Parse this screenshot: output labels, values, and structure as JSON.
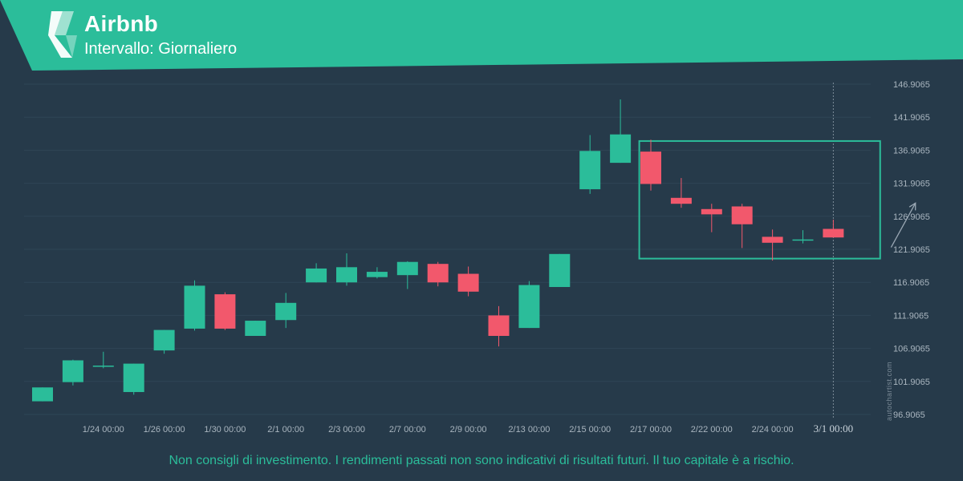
{
  "header": {
    "title": "Airbnb",
    "subtitle": "Intervallo: Giornaliero"
  },
  "colors": {
    "background": "#263a4a",
    "banner": "#2bbd9a",
    "bull": "#2bbd9a",
    "bear": "#f2586c",
    "pattern_box": "#2bbd9a",
    "arrow": "#9aa8b4"
  },
  "icons": {
    "logo": "autochartist-logo-icon"
  },
  "chart_data": {
    "type": "candlestick",
    "ylim": [
      96.9065,
      146.9065
    ],
    "y_ticks": [
      "146.9065",
      "141.9065",
      "136.9065",
      "131.9065",
      "126.9065",
      "121.9065",
      "116.9065",
      "111.9065",
      "106.9065",
      "101.9065",
      "96.9065"
    ],
    "x_tick_labels": [
      {
        "label": "1/24 00:00",
        "index": 2
      },
      {
        "label": "1/26 00:00",
        "index": 4
      },
      {
        "label": "1/30 00:00",
        "index": 6
      },
      {
        "label": "2/1 00:00",
        "index": 8
      },
      {
        "label": "2/3 00:00",
        "index": 10
      },
      {
        "label": "2/7 00:00",
        "index": 12
      },
      {
        "label": "2/9 00:00",
        "index": 14
      },
      {
        "label": "2/13 00:00",
        "index": 16
      },
      {
        "label": "2/15 00:00",
        "index": 18
      },
      {
        "label": "2/17 00:00",
        "index": 20
      },
      {
        "label": "2/22 00:00",
        "index": 22
      },
      {
        "label": "2/24 00:00",
        "index": 24
      },
      {
        "label": "3/1 00:00",
        "index": 26
      }
    ],
    "candles": [
      {
        "o": 98.9,
        "h": 101.0,
        "l": 98.9,
        "c": 101.0
      },
      {
        "o": 101.8,
        "h": 105.2,
        "l": 101.3,
        "c": 105.1
      },
      {
        "o": 104.3,
        "h": 106.4,
        "l": 103.9,
        "c": 104.3
      },
      {
        "o": 100.3,
        "h": 104.6,
        "l": 99.9,
        "c": 104.6
      },
      {
        "o": 106.6,
        "h": 109.7,
        "l": 106.1,
        "c": 109.7
      },
      {
        "o": 109.9,
        "h": 117.2,
        "l": 109.6,
        "c": 116.4
      },
      {
        "o": 115.1,
        "h": 115.4,
        "l": 109.7,
        "c": 109.9
      },
      {
        "o": 108.8,
        "h": 111.1,
        "l": 108.8,
        "c": 111.1
      },
      {
        "o": 111.2,
        "h": 115.3,
        "l": 110.0,
        "c": 113.8
      },
      {
        "o": 116.9,
        "h": 119.8,
        "l": 116.9,
        "c": 119.0
      },
      {
        "o": 116.9,
        "h": 121.3,
        "l": 116.4,
        "c": 119.2
      },
      {
        "o": 117.7,
        "h": 119.2,
        "l": 117.5,
        "c": 118.5
      },
      {
        "o": 118.0,
        "h": 120.1,
        "l": 115.9,
        "c": 120.0
      },
      {
        "o": 119.7,
        "h": 120.0,
        "l": 116.3,
        "c": 116.9
      },
      {
        "o": 118.2,
        "h": 119.3,
        "l": 114.8,
        "c": 115.5
      },
      {
        "o": 111.9,
        "h": 113.3,
        "l": 107.2,
        "c": 108.8
      },
      {
        "o": 110.0,
        "h": 117.1,
        "l": 110.0,
        "c": 116.5
      },
      {
        "o": 116.2,
        "h": 121.2,
        "l": 116.2,
        "c": 121.2
      },
      {
        "o": 131.0,
        "h": 139.2,
        "l": 130.3,
        "c": 136.8
      },
      {
        "o": 135.0,
        "h": 144.6,
        "l": 135.0,
        "c": 139.3
      },
      {
        "o": 136.7,
        "h": 138.5,
        "l": 130.8,
        "c": 131.8
      },
      {
        "o": 129.7,
        "h": 132.7,
        "l": 128.2,
        "c": 128.8
      },
      {
        "o": 128.0,
        "h": 128.8,
        "l": 124.5,
        "c": 127.2
      },
      {
        "o": 128.4,
        "h": 128.8,
        "l": 122.1,
        "c": 125.7
      },
      {
        "o": 123.8,
        "h": 124.9,
        "l": 120.2,
        "c": 122.9
      },
      {
        "o": 123.4,
        "h": 124.8,
        "l": 122.8,
        "c": 123.4
      },
      {
        "o": 125.0,
        "h": 126.4,
        "l": 123.7,
        "c": 123.7
      }
    ],
    "pattern_box": {
      "from_index": 19.62,
      "to_index": 27.54,
      "top": 138.3,
      "bottom": 120.5
    },
    "forecast_arrow": {
      "from": {
        "index": 27.9,
        "y": 122.2
      },
      "to": {
        "index": 28.7,
        "y": 128.9
      }
    },
    "current_time_index": 26
  },
  "footer": {
    "disclaimer": "Non consigli di investimento. I rendimenti passati non sono indicativi di risultati futuri. Il tuo capitale è a rischio.",
    "watermark": "autochartist.com"
  }
}
